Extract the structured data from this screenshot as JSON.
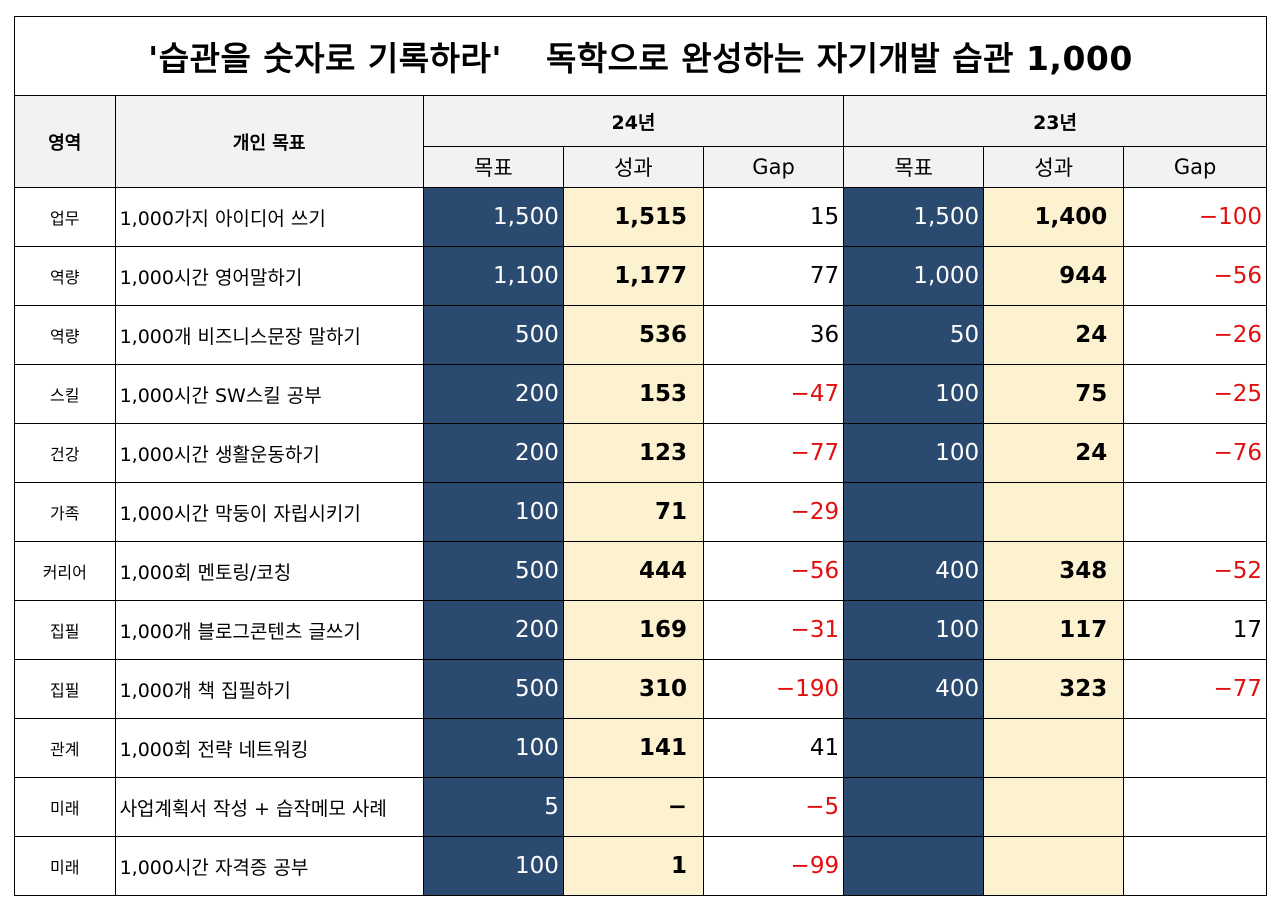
{
  "title": {
    "part1": "'습관을 숫자로 기록하라'",
    "part2": "독학으로 완성하는 자기개발 습관 1,000"
  },
  "headers": {
    "area": "영역",
    "goal": "개인 목표",
    "year24": "24년",
    "year23": "23년",
    "target": "목표",
    "result": "성과",
    "gap": "Gap"
  },
  "colors": {
    "target_bg": "#2b4a70",
    "result_bg": "#fdf2d0",
    "negative_text": "#e01010",
    "header_bg": "#f2f2f2"
  },
  "rows": [
    {
      "area": "업무",
      "goal": "1,000가지 아이디어 쓰기",
      "t24": "1,500",
      "r24": "1,515",
      "g24": "15",
      "t23": "1,500",
      "r23": "1,400",
      "g23": "−100"
    },
    {
      "area": "역량",
      "goal": "1,000시간 영어말하기",
      "t24": "1,100",
      "r24": "1,177",
      "g24": "77",
      "t23": "1,000",
      "r23": "944",
      "g23": "−56"
    },
    {
      "area": "역량",
      "goal": "1,000개 비즈니스문장 말하기",
      "t24": "500",
      "r24": "536",
      "g24": "36",
      "t23": "50",
      "r23": "24",
      "g23": "−26"
    },
    {
      "area": "스킬",
      "goal": "1,000시간 SW스킬 공부",
      "t24": "200",
      "r24": "153",
      "g24": "−47",
      "t23": "100",
      "r23": "75",
      "g23": "−25"
    },
    {
      "area": "건강",
      "goal": "1,000시간 생활운동하기",
      "t24": "200",
      "r24": "123",
      "g24": "−77",
      "t23": "100",
      "r23": "24",
      "g23": "−76"
    },
    {
      "area": "가족",
      "goal": "1,000시간 막둥이 자립시키기",
      "t24": "100",
      "r24": "71",
      "g24": "−29",
      "t23": "",
      "r23": "",
      "g23": ""
    },
    {
      "area": "커리어",
      "goal": "1,000회 멘토링/코칭",
      "t24": "500",
      "r24": "444",
      "g24": "−56",
      "t23": "400",
      "r23": "348",
      "g23": "−52"
    },
    {
      "area": "집필",
      "goal": "1,000개 블로그콘텐츠 글쓰기",
      "t24": "200",
      "r24": "169",
      "g24": "−31",
      "t23": "100",
      "r23": "117",
      "g23": "17"
    },
    {
      "area": "집필",
      "goal": "1,000개 책 집필하기",
      "t24": "500",
      "r24": "310",
      "g24": "−190",
      "t23": "400",
      "r23": "323",
      "g23": "−77"
    },
    {
      "area": "관계",
      "goal": "1,000회 전략 네트워킹",
      "t24": "100",
      "r24": "141",
      "g24": "41",
      "t23": "",
      "r23": "",
      "g23": ""
    },
    {
      "area": "미래",
      "goal": "사업계획서 작성 + 습작메모 사례",
      "t24": "5",
      "r24": "−",
      "g24": "−5",
      "t23": "",
      "r23": "",
      "g23": ""
    },
    {
      "area": "미래",
      "goal": "1,000시간 자격증 공부",
      "t24": "100",
      "r24": "1",
      "g24": "−99",
      "t23": "",
      "r23": "",
      "g23": ""
    }
  ]
}
